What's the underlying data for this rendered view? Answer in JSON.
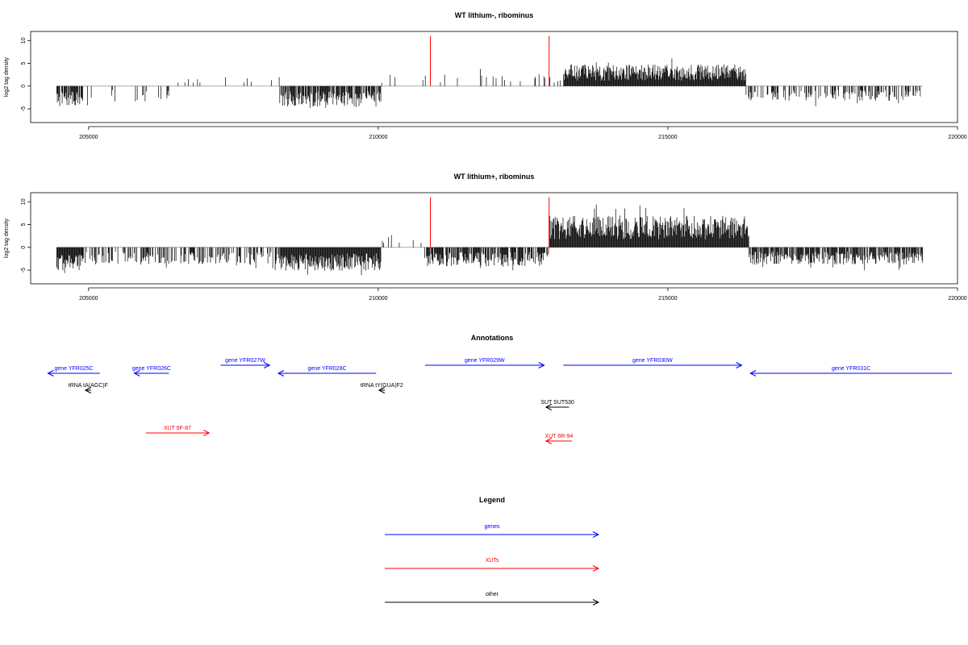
{
  "chart_data": [
    {
      "type": "bar",
      "title": "WT lithium-, ribominus",
      "xlabel": "",
      "ylabel": "log2 tag density",
      "xlim": [
        204000,
        220000
      ],
      "ylim": [
        -8,
        12
      ],
      "xticks": [
        205000,
        210000,
        215000,
        220000
      ],
      "yticks": [
        -5,
        0,
        5,
        10
      ],
      "bar_color": "#000000",
      "baseline_color": "#aaaaaa",
      "data_range": [
        204450,
        219400
      ],
      "annotation_lines": {
        "color": "#ff0000",
        "x": [
          210900,
          212950
        ],
        "y": [
          0,
          11
        ]
      },
      "segments": [
        {
          "x0": 204450,
          "x1": 204900,
          "strand": "-",
          "density": 0.75,
          "amp": 4.2,
          "gap_neg": 0.7
        },
        {
          "x0": 204900,
          "x1": 206400,
          "strand": "-",
          "density": 0.12,
          "amp": 3.5,
          "gap_neg": 0.5
        },
        {
          "x0": 206400,
          "x1": 208300,
          "strand": "+",
          "density": 0.08,
          "amp": 2.6,
          "gap_neg": 0.4
        },
        {
          "x0": 208300,
          "x1": 210050,
          "strand": "-",
          "density": 0.8,
          "amp": 4.5,
          "gap_neg": 0.95
        },
        {
          "x0": 210050,
          "x1": 213200,
          "strand": "+",
          "density": 0.07,
          "amp": 2.8,
          "gap_neg": 0.4
        },
        {
          "x0": 213200,
          "x1": 216350,
          "strand": "+",
          "density": 1.0,
          "amp": 4.8,
          "gap_neg": 0.0
        },
        {
          "x0": 216350,
          "x1": 219400,
          "strand": "-",
          "density": 0.45,
          "amp": 3.3,
          "gap_neg": 0.95
        }
      ]
    },
    {
      "type": "bar",
      "title": "WT lithium+, ribominus",
      "xlabel": "",
      "ylabel": "log2 tag density",
      "xlim": [
        204000,
        220000
      ],
      "ylim": [
        -8,
        12
      ],
      "xticks": [
        205000,
        210000,
        215000,
        220000
      ],
      "yticks": [
        -5,
        0,
        5,
        10
      ],
      "bar_color": "#000000",
      "baseline_color": "#aaaaaa",
      "data_range": [
        204450,
        219400
      ],
      "annotation_lines": {
        "color": "#ff0000",
        "x": [
          210900,
          212950
        ],
        "y": [
          0,
          11
        ]
      },
      "segments": [
        {
          "x0": 204450,
          "x1": 204900,
          "strand": "-",
          "density": 1.0,
          "amp": 5.0,
          "gap_neg": 0.75
        },
        {
          "x0": 204900,
          "x1": 208300,
          "strand": "-",
          "density": 0.45,
          "amp": 3.8,
          "gap_neg": 0.6
        },
        {
          "x0": 208300,
          "x1": 210050,
          "strand": "-",
          "density": 1.0,
          "amp": 5.2,
          "gap_neg": 0.95
        },
        {
          "x0": 210050,
          "x1": 210800,
          "strand": "+",
          "density": 0.15,
          "amp": 2.8,
          "gap_neg": 0.4
        },
        {
          "x0": 210800,
          "x1": 212950,
          "strand": "-",
          "density": 0.8,
          "amp": 4.2,
          "gap_neg": 0.7
        },
        {
          "x0": 212950,
          "x1": 216400,
          "strand": "+",
          "density": 1.0,
          "amp": 7.0,
          "gap_neg": 0.0
        },
        {
          "x0": 216400,
          "x1": 219400,
          "strand": "-",
          "density": 0.8,
          "amp": 3.8,
          "gap_neg": 0.7
        }
      ]
    }
  ],
  "annotations_panel": {
    "title": "Annotations",
    "xlim": [
      204000,
      220000
    ],
    "items": [
      {
        "label": "gene YFR025C",
        "color": "#0000ff",
        "x0": 204300,
        "x1": 205200,
        "dir": "-",
        "row": 1
      },
      {
        "label": "gene YFR026C",
        "color": "#0000ff",
        "x0": 205800,
        "x1": 206400,
        "dir": "-",
        "row": 1
      },
      {
        "label": "gene YFR027W",
        "color": "#0000ff",
        "x0": 207300,
        "x1": 208150,
        "dir": "+",
        "row": 0
      },
      {
        "label": "gene YFR028C",
        "color": "#0000ff",
        "x0": 208300,
        "x1": 210000,
        "dir": "-",
        "row": 1
      },
      {
        "label": "gene YFR029W",
        "color": "#0000ff",
        "x0": 210850,
        "x1": 212920,
        "dir": "+",
        "row": 0
      },
      {
        "label": "gene YFR030W",
        "color": "#0000ff",
        "x0": 213250,
        "x1": 216350,
        "dir": "+",
        "row": 0
      },
      {
        "label": "gene YFR031C",
        "color": "#0000ff",
        "x0": 216500,
        "x1": 220000,
        "dir": "-",
        "row": 1
      },
      {
        "label": "tRNA tA(AGC)F",
        "color": "#000000",
        "x0": 204950,
        "x1": 205050,
        "dir": "-",
        "row": 2
      },
      {
        "label": "tRNA tY(GUA)F2",
        "color": "#000000",
        "x0": 210050,
        "x1": 210150,
        "dir": "-",
        "row": 2
      },
      {
        "label": "SUT SUT530",
        "color": "#000000",
        "x0": 212950,
        "x1": 213350,
        "dir": "-",
        "row": 3
      },
      {
        "label": "XUT 6F-87",
        "color": "#ff0000",
        "x0": 206000,
        "x1": 207100,
        "dir": "+",
        "row": 4
      },
      {
        "label": "XUT 6R-94",
        "color": "#ff0000",
        "x0": 212950,
        "x1": 213400,
        "dir": "-",
        "row": 5
      }
    ]
  },
  "legend": {
    "title": "Legend",
    "items": [
      {
        "label": "genes",
        "color": "#0000ff"
      },
      {
        "label": "XUTs",
        "color": "#ff0000"
      },
      {
        "label": "other",
        "color": "#000000"
      }
    ]
  }
}
